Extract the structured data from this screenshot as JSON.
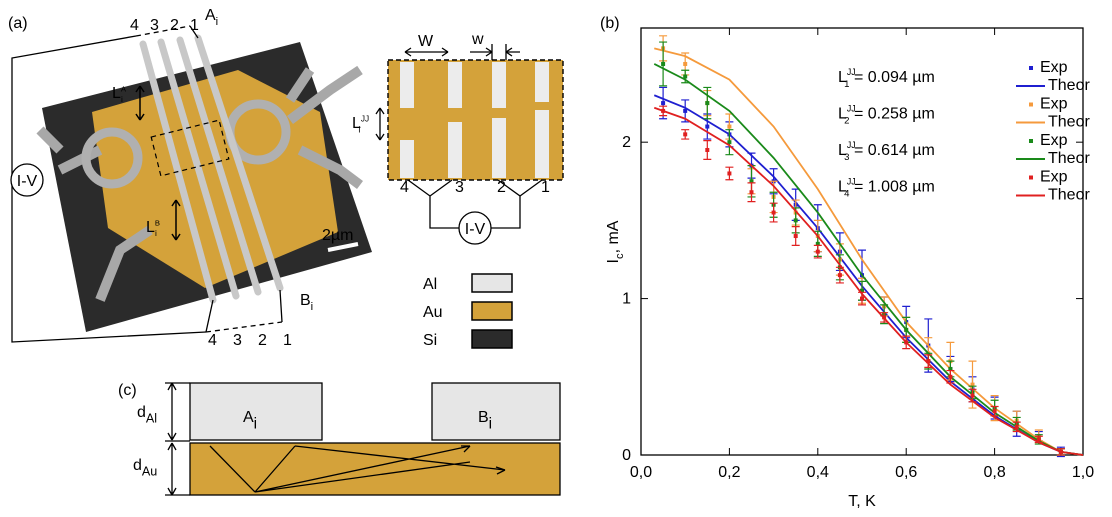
{
  "panel_labels": [
    "(a)",
    "(b)",
    "(c)"
  ],
  "panel_a": {
    "top_wire_numbers": [
      "4",
      "3",
      "2",
      "1"
    ],
    "bottom_wire_numbers": [
      "4",
      "3",
      "2",
      "1"
    ],
    "a_label": {
      "base": "A",
      "sub": "i"
    },
    "b_label": {
      "base": "B",
      "sub": "i"
    },
    "la_label": {
      "base": "L",
      "sub": "i",
      "sup": "A"
    },
    "lb_label": {
      "base": "L",
      "sub": "i",
      "sup": "B"
    },
    "iv_label": "I-V",
    "scale_label": "2µm",
    "inset": {
      "big_w": "W",
      "small_w": "w",
      "ljj_label": {
        "base": "L",
        "sub": "i",
        "sup": "JJ"
      },
      "numbers": [
        "4",
        "3",
        "2",
        "1"
      ],
      "iv_label": "I-V"
    },
    "materials": [
      {
        "name": "Al",
        "color": "#e6e6e6"
      },
      {
        "name": "Au",
        "color": "#d4a23a"
      },
      {
        "name": "Si",
        "color": "#2b2b2b"
      }
    ]
  },
  "panel_c": {
    "d_al": {
      "base": "d",
      "sub": "Al"
    },
    "d_au": {
      "base": "d",
      "sub": "Au"
    },
    "a_label": {
      "base": "A",
      "sub": "i"
    },
    "b_label": {
      "base": "B",
      "sub": "i"
    }
  },
  "chart_data": {
    "type": "line",
    "xlabel": "T, K",
    "ylabel": {
      "base": "I",
      "sub": "c",
      "rest": ", mA"
    },
    "xlim": [
      0,
      1
    ],
    "ylim": [
      0,
      2.73
    ],
    "xticks": [
      {
        "value": 0,
        "label": "0,0"
      },
      {
        "value": 0.2,
        "label": "0,2"
      },
      {
        "value": 0.4,
        "label": "0,4"
      },
      {
        "value": 0.6,
        "label": "0,6"
      },
      {
        "value": 0.8,
        "label": "0,8"
      },
      {
        "value": 1,
        "label": "1,0"
      }
    ],
    "yticks": [
      0,
      1,
      2
    ],
    "x_exp": [
      0.05,
      0.1,
      0.15,
      0.2,
      0.25,
      0.3,
      0.35,
      0.4,
      0.45,
      0.5,
      0.55,
      0.6,
      0.65,
      0.7,
      0.75,
      0.8,
      0.85,
      0.9,
      0.95
    ],
    "x_theory": [
      0.03,
      0.1,
      0.2,
      0.3,
      0.4,
      0.5,
      0.6,
      0.7,
      0.8,
      0.9,
      0.95,
      1.0
    ],
    "series": [
      {
        "label": {
          "base": "L",
          "sub": "1",
          "sup": "JJ",
          "rest": " = 0.094 µm"
        },
        "color": "#1f1fd0",
        "exp": {
          "name": "Exp",
          "values": [
            2.25,
            2.2,
            2.1,
            2.05,
            1.85,
            1.75,
            1.6,
            1.45,
            1.3,
            1.15,
            0.95,
            0.85,
            0.7,
            0.55,
            0.42,
            0.3,
            0.2,
            0.12,
            0.02
          ],
          "errors": [
            0.1,
            0.07,
            0.08,
            0.08,
            0.08,
            0.08,
            0.1,
            0.15,
            0.12,
            0.16,
            0.06,
            0.1,
            0.17,
            0.08,
            0.08,
            0.07,
            0.08,
            0.03,
            0.03
          ]
        },
        "theory": {
          "name": "Theor",
          "values": [
            2.3,
            2.22,
            2.05,
            1.78,
            1.45,
            1.08,
            0.75,
            0.47,
            0.25,
            0.08,
            0.02,
            0
          ]
        }
      },
      {
        "label": {
          "base": "L",
          "sub": "2",
          "sup": "JJ",
          "rest": " = 0.258 µm"
        },
        "color": "#f59a3c",
        "exp": {
          "name": "Exp",
          "values": [
            2.6,
            2.5,
            2.25,
            2.1,
            1.75,
            1.65,
            1.55,
            1.4,
            1.25,
            1.05,
            0.95,
            0.8,
            0.65,
            0.6,
            0.45,
            0.3,
            0.22,
            0.12,
            0.02
          ],
          "errors": [
            0.08,
            0.07,
            0.08,
            0.08,
            0.08,
            0.1,
            0.08,
            0.1,
            0.1,
            0.08,
            0.06,
            0.08,
            0.1,
            0.12,
            0.15,
            0.08,
            0.06,
            0.04,
            0.02
          ]
        },
        "theory": {
          "name": "Theor",
          "values": [
            2.6,
            2.55,
            2.4,
            2.1,
            1.7,
            1.25,
            0.85,
            0.55,
            0.3,
            0.1,
            0.02,
            0
          ]
        }
      },
      {
        "label": {
          "base": "L",
          "sub": "3",
          "sup": "JJ",
          "rest": " = 0.614 µm"
        },
        "color": "#1a8a1a",
        "exp": {
          "name": "Exp",
          "values": [
            2.5,
            2.42,
            2.25,
            2.0,
            1.75,
            1.6,
            1.5,
            1.35,
            1.2,
            1.05,
            0.9,
            0.8,
            0.6,
            0.55,
            0.4,
            0.3,
            0.2,
            0.1,
            0.02
          ],
          "errors": [
            0.14,
            0.04,
            0.1,
            0.08,
            0.1,
            0.08,
            0.08,
            0.08,
            0.08,
            0.06,
            0.06,
            0.08,
            0.05,
            0.05,
            0.04,
            0.05,
            0.04,
            0.03,
            0.02
          ]
        },
        "theory": {
          "name": "Theor",
          "values": [
            2.5,
            2.4,
            2.2,
            1.9,
            1.55,
            1.15,
            0.8,
            0.5,
            0.27,
            0.09,
            0.02,
            0
          ]
        }
      },
      {
        "label": {
          "base": "L",
          "sub": "4",
          "sup": "JJ",
          "rest": " = 1.008 µm"
        },
        "color": "#e02020",
        "exp": {
          "name": "Exp",
          "values": [
            2.2,
            2.05,
            1.95,
            1.8,
            1.68,
            1.55,
            1.4,
            1.3,
            1.15,
            1.0,
            0.88,
            0.72,
            0.6,
            0.5,
            0.38,
            0.28,
            0.18,
            0.1,
            0.02
          ],
          "errors": [
            0.03,
            0.03,
            0.06,
            0.04,
            0.06,
            0.06,
            0.06,
            0.04,
            0.05,
            0.04,
            0.03,
            0.04,
            0.04,
            0.04,
            0.04,
            0.03,
            0.03,
            0.02,
            0.02
          ]
        },
        "theory": {
          "name": "Theor",
          "values": [
            2.22,
            2.15,
            1.98,
            1.72,
            1.4,
            1.03,
            0.72,
            0.45,
            0.24,
            0.08,
            0.02,
            0
          ]
        }
      }
    ]
  }
}
